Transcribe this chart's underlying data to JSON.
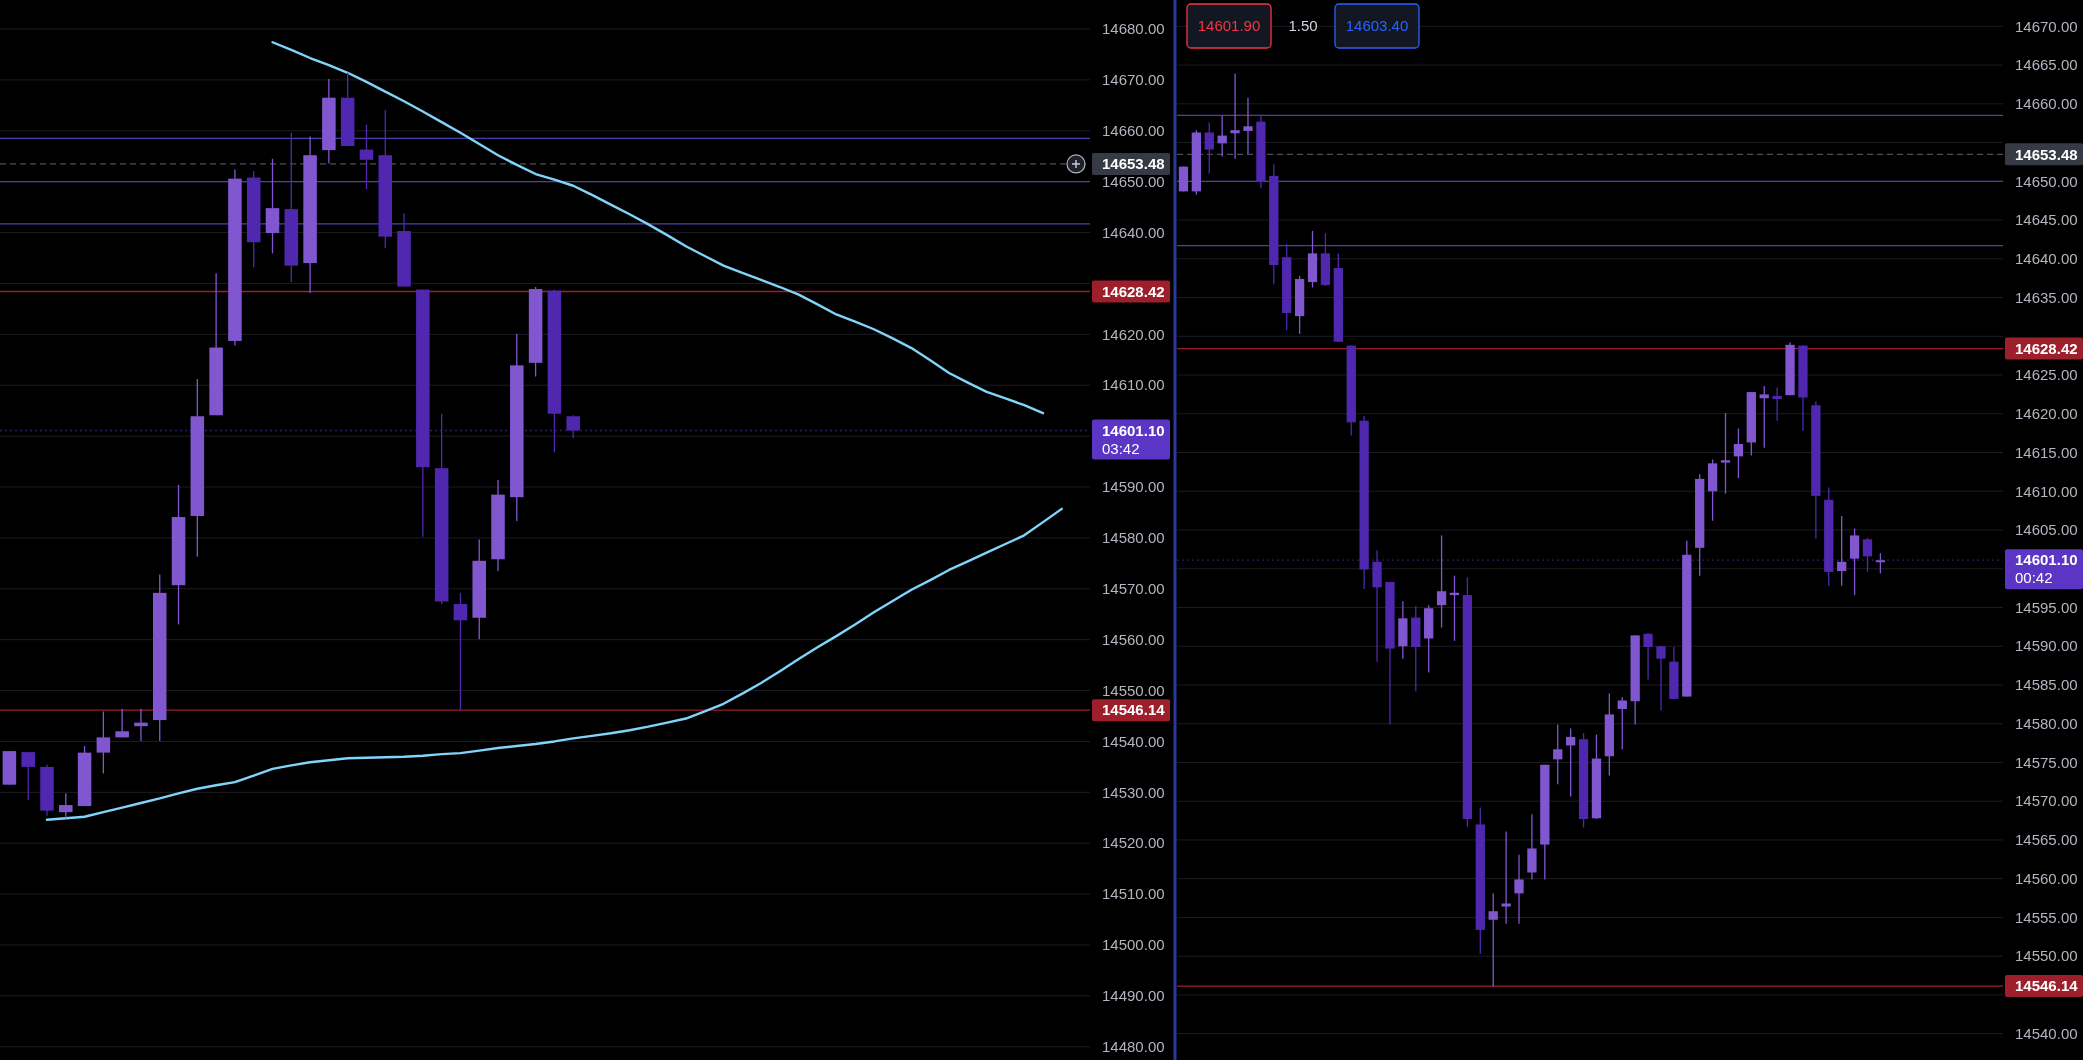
{
  "chart_data": [
    {
      "type": "candlestick",
      "ylim": [
        14477.4,
        14685.7
      ],
      "tick_labels": "y",
      "grid": "y",
      "yticks": [
        {
          "value": 14480,
          "label": "14480.00"
        },
        {
          "value": 14490,
          "label": "14490.00"
        },
        {
          "value": 14500,
          "label": "14500.00"
        },
        {
          "value": 14510,
          "label": "14510.00"
        },
        {
          "value": 14520,
          "label": "14520.00"
        },
        {
          "value": 14530,
          "label": "14530.00"
        },
        {
          "value": 14540,
          "label": "14540.00"
        },
        {
          "value": 14550,
          "label": "14550.00"
        },
        {
          "value": 14560,
          "label": "14560.00"
        },
        {
          "value": 14570,
          "label": "14570.00"
        },
        {
          "value": 14580,
          "label": "14580.00"
        },
        {
          "value": 14590,
          "label": "14590.00"
        },
        {
          "value": 14600,
          "label": null
        },
        {
          "value": 14610,
          "label": "14610.00"
        },
        {
          "value": 14620,
          "label": "14620.00"
        },
        {
          "value": 14630,
          "label": null
        },
        {
          "value": 14640,
          "label": "14640.00"
        },
        {
          "value": 14650,
          "label": "14650.00"
        },
        {
          "value": 14660,
          "label": "14660.00"
        },
        {
          "value": 14670,
          "label": "14670.00"
        },
        {
          "value": 14680,
          "label": "14680.00"
        }
      ],
      "categories": [
        null,
        null,
        null,
        null,
        null,
        null,
        null,
        null,
        null,
        null,
        null,
        null,
        null,
        null,
        null,
        null,
        null,
        null,
        null,
        null,
        null,
        null,
        null,
        null,
        null,
        null,
        null,
        null,
        null,
        null,
        null,
        null,
        null,
        null,
        null,
        null,
        null,
        null,
        null,
        null,
        null,
        null,
        null,
        null,
        null,
        null,
        null,
        null,
        null,
        null,
        null,
        null,
        null,
        null,
        null,
        null,
        null,
        null
      ],
      "ohlc": [
        [
          14531.5,
          14538.1,
          14531.5,
          14538.1
        ],
        [
          14537.9,
          14537.9,
          14528.5,
          14535.0
        ],
        [
          14535.0,
          14535.4,
          14525.4,
          14526.4
        ],
        [
          14526.1,
          14529.8,
          14524.9,
          14527.5
        ],
        [
          14527.3,
          14539.1,
          14527.3,
          14537.8
        ],
        [
          14537.8,
          14545.9,
          14533.7,
          14540.8
        ],
        [
          14540.8,
          14546.4,
          14540.8,
          14542.0
        ],
        [
          14543.0,
          14546.4,
          14540.1,
          14543.7
        ],
        [
          14544.2,
          14572.8,
          14540.1,
          14569.2
        ],
        [
          14570.7,
          14590.4,
          14563.0,
          14584.1
        ],
        [
          14584.3,
          14611.2,
          14576.3,
          14603.9
        ],
        [
          14604.1,
          14632.0,
          14604.1,
          14617.4
        ],
        [
          14618.7,
          14652.4,
          14617.8,
          14650.6
        ],
        [
          14650.8,
          14652.1,
          14633.2,
          14638.1
        ],
        [
          14639.9,
          14654.5,
          14635.9,
          14644.8
        ],
        [
          14644.6,
          14659.6,
          14630.3,
          14633.5
        ],
        [
          14634.0,
          14658.9,
          14628.1,
          14655.2
        ],
        [
          14656.2,
          14670.2,
          14653.6,
          14666.5
        ],
        [
          14666.5,
          14671.4,
          14657.0,
          14657.0
        ],
        [
          14656.3,
          14661.2,
          14648.5,
          14654.3
        ],
        [
          14655.2,
          14664.1,
          14636.9,
          14639.2
        ],
        [
          14640.3,
          14643.8,
          14629.4,
          14629.4
        ],
        [
          14628.8,
          14628.8,
          14580.2,
          14593.9
        ],
        [
          14593.7,
          14604.4,
          14567.0,
          14567.5
        ],
        [
          14567.0,
          14569.2,
          14546.1,
          14563.8
        ],
        [
          14564.3,
          14579.7,
          14560.1,
          14575.5
        ],
        [
          14575.8,
          14591.4,
          14573.5,
          14588.5
        ],
        [
          14588.0,
          14620.1,
          14583.3,
          14613.9
        ],
        [
          14614.4,
          14629.3,
          14611.7,
          14628.9
        ],
        [
          14628.6,
          14628.8,
          14596.8,
          14604.4
        ],
        [
          14603.9,
          14604.1,
          14599.6,
          14601.1
        ],
        null,
        null,
        null,
        null,
        null,
        null,
        null,
        null,
        null,
        null,
        null,
        null,
        null,
        null,
        null,
        null,
        null,
        null,
        null,
        null,
        null,
        null,
        null,
        null,
        null,
        null,
        null
      ],
      "colors": [
        "#8057cf",
        "#5028b0",
        "#5028b0",
        "#8057cf",
        "#8057cf",
        "#8057cf",
        "#8057cf",
        "#8057cf",
        "#8057cf",
        "#8057cf",
        "#8057cf",
        "#8057cf",
        "#8057cf",
        "#5028b0",
        "#8057cf",
        "#5028b0",
        "#8057cf",
        "#8057cf",
        "#5028b0",
        "#5028b0",
        "#5028b0",
        "#5028b0",
        "#5028b0",
        "#5028b0",
        "#5028b0",
        "#8057cf",
        "#8057cf",
        "#8057cf",
        "#8057cf",
        "#5028b0",
        "#5028b0",
        null,
        null,
        null,
        null,
        null,
        null,
        null,
        null,
        null,
        null,
        null,
        null,
        null,
        null,
        null,
        null,
        null,
        null,
        null,
        null,
        null,
        null,
        null,
        null,
        null,
        null,
        null
      ],
      "series": [
        {
          "type": "line",
          "color": "#81d4fa",
          "values": [
            null,
            null,
            null,
            null,
            null,
            null,
            null,
            null,
            null,
            null,
            null,
            null,
            null,
            null,
            14677.4,
            14675.9,
            14674.3,
            14672.9,
            14671.4,
            14669.6,
            14667.7,
            14665.8,
            14663.8,
            14661.7,
            14659.6,
            14657.4,
            14655.2,
            14653.3,
            14651.5,
            14650.4,
            14649.2,
            14647.4,
            14645.5,
            14643.6,
            14641.6,
            14639.5,
            14637.3,
            14635.4,
            14633.5,
            14632.1,
            14630.7,
            14629.3,
            14627.8,
            14625.9,
            14623.9,
            14622.5,
            14621.0,
            14619.2,
            14617.3,
            14614.9,
            14612.4,
            14610.5,
            14608.7,
            14607.4,
            14606.1,
            14604.5,
            null,
            null
          ]
        },
        {
          "type": "line",
          "color": "#81d4fa",
          "values": [
            null,
            null,
            14524.6,
            14524.9,
            14525.2,
            14526.1,
            14527.0,
            14527.9,
            14528.8,
            14529.8,
            14530.7,
            14531.4,
            14532.0,
            14533.3,
            14534.6,
            14535.3,
            14535.9,
            14536.3,
            14536.7,
            14536.8,
            14536.9,
            14537.0,
            14537.2,
            14537.5,
            14537.7,
            14538.2,
            14538.7,
            14539.1,
            14539.5,
            14540.0,
            14540.6,
            14541.1,
            14541.6,
            14542.2,
            14542.9,
            14543.7,
            14544.5,
            14545.9,
            14547.4,
            14549.4,
            14551.5,
            14553.8,
            14556.2,
            14558.5,
            14560.7,
            14563.0,
            14565.4,
            14567.6,
            14569.8,
            14571.7,
            14573.7,
            14575.4,
            14577.1,
            14578.8,
            14580.5,
            14583.1,
            14585.7,
            null
          ]
        }
      ],
      "ref_lines": [
        {
          "axis": "y",
          "value": 14658.5,
          "color": "#4b3fb0"
        },
        {
          "axis": "y",
          "value": 14650,
          "color": "#4b3fb0"
        },
        {
          "axis": "y",
          "value": 14641.7,
          "color": "#4b3fb0"
        },
        {
          "axis": "y",
          "value": 14628.42,
          "label": "14628.42",
          "color": "#9c1f2b"
        },
        {
          "axis": "y",
          "value": 14546.14,
          "label": "14546.14",
          "color": "#9c1f2b"
        },
        {
          "axis": "y",
          "value": 14653.48,
          "label": "14653.48",
          "color": "#4a4e5a",
          "line_style": "dashed"
        },
        {
          "axis": "y",
          "value": 14601.1,
          "label": "14601.10\n03:42",
          "color": "#5b35c4",
          "line_style": "dotted"
        }
      ]
    },
    {
      "type": "candlestick",
      "ylim": [
        14536.6,
        14673.4
      ],
      "tick_labels": "y",
      "grid": "y",
      "yticks": [
        {
          "value": 14540,
          "label": "14540.00"
        },
        {
          "value": 14545,
          "label": null
        },
        {
          "value": 14550,
          "label": "14550.00"
        },
        {
          "value": 14555,
          "label": "14555.00"
        },
        {
          "value": 14560,
          "label": "14560.00"
        },
        {
          "value": 14565,
          "label": "14565.00"
        },
        {
          "value": 14570,
          "label": "14570.00"
        },
        {
          "value": 14575,
          "label": "14575.00"
        },
        {
          "value": 14580,
          "label": "14580.00"
        },
        {
          "value": 14585,
          "label": "14585.00"
        },
        {
          "value": 14590,
          "label": "14590.00"
        },
        {
          "value": 14595,
          "label": "14595.00"
        },
        {
          "value": 14600,
          "label": null
        },
        {
          "value": 14605,
          "label": "14605.00"
        },
        {
          "value": 14610,
          "label": "14610.00"
        },
        {
          "value": 14615,
          "label": "14615.00"
        },
        {
          "value": 14620,
          "label": "14620.00"
        },
        {
          "value": 14625,
          "label": "14625.00"
        },
        {
          "value": 14630,
          "label": null
        },
        {
          "value": 14635,
          "label": "14635.00"
        },
        {
          "value": 14640,
          "label": "14640.00"
        },
        {
          "value": 14645,
          "label": "14645.00"
        },
        {
          "value": 14650,
          "label": "14650.00"
        },
        {
          "value": 14655,
          "label": null
        },
        {
          "value": 14660,
          "label": "14660.00"
        },
        {
          "value": 14665,
          "label": "14665.00"
        },
        {
          "value": 14670,
          "label": "14670.00"
        }
      ],
      "categories": [
        null,
        null,
        null,
        null,
        null,
        null,
        null,
        null,
        null,
        null,
        null,
        null,
        null,
        null,
        null,
        null,
        null,
        null,
        null,
        null,
        null,
        null,
        null,
        null,
        null,
        null,
        null,
        null,
        null,
        null,
        null,
        null,
        null,
        null,
        null,
        null,
        null,
        null,
        null,
        null,
        null,
        null,
        null,
        null,
        null,
        null,
        null,
        null,
        null,
        null,
        null,
        null,
        null,
        null,
        null,
        null,
        null,
        null,
        null,
        null,
        null,
        null,
        null,
        null
      ],
      "ohlc": [
        [
          14648.7,
          14651.9,
          14648.7,
          14651.9
        ],
        [
          14648.7,
          14656.6,
          14648.3,
          14656.3
        ],
        [
          14656.3,
          14657.6,
          14651.0,
          14654.1
        ],
        [
          14654.9,
          14658.5,
          14653.2,
          14655.9
        ],
        [
          14656.2,
          14663.9,
          14652.9,
          14656.6
        ],
        [
          14656.5,
          14660.8,
          14653.5,
          14657.1
        ],
        [
          14657.7,
          14658.6,
          14649.1,
          14649.9
        ],
        [
          14650.7,
          14652.2,
          14636.7,
          14639.2
        ],
        [
          14640.2,
          14641.9,
          14630.8,
          14633.0
        ],
        [
          14632.6,
          14637.8,
          14630.3,
          14637.4
        ],
        [
          14637.0,
          14643.6,
          14636.3,
          14640.7
        ],
        [
          14640.7,
          14643.3,
          14636.5,
          14636.6
        ],
        [
          14638.8,
          14640.7,
          14629.3,
          14629.3
        ],
        [
          14628.8,
          14628.8,
          14617.2,
          14618.9
        ],
        [
          14619.1,
          14619.7,
          14597.4,
          14599.9
        ],
        [
          14600.9,
          14602.4,
          14588.0,
          14597.6
        ],
        [
          14598.3,
          14598.3,
          14579.9,
          14589.7
        ],
        [
          14590.0,
          14595.8,
          14588.4,
          14593.6
        ],
        [
          14593.7,
          14595.2,
          14584.2,
          14589.9
        ],
        [
          14591.0,
          14595.3,
          14586.6,
          14594.9
        ],
        [
          14595.3,
          14604.3,
          14592.4,
          14597.1
        ],
        [
          14596.6,
          14599.1,
          14590.7,
          14596.9
        ],
        [
          14596.6,
          14598.9,
          14566.7,
          14567.7
        ],
        [
          14567.0,
          14569.2,
          14550.3,
          14553.4
        ],
        [
          14554.7,
          14558.1,
          14546.1,
          14555.8
        ],
        [
          14556.4,
          14566.1,
          14554.2,
          14556.8
        ],
        [
          14558.1,
          14563.1,
          14554.2,
          14559.9
        ],
        [
          14560.8,
          14568.3,
          14559.9,
          14563.9
        ],
        [
          14564.4,
          14574.7,
          14559.9,
          14574.7
        ],
        [
          14575.4,
          14579.9,
          14572.2,
          14576.7
        ],
        [
          14577.2,
          14579.4,
          14570.6,
          14578.3
        ],
        [
          14578.0,
          14578.8,
          14566.6,
          14567.7
        ],
        [
          14567.8,
          14578.6,
          14567.7,
          14575.5
        ],
        [
          14575.8,
          14583.9,
          14573.3,
          14581.2
        ],
        [
          14581.9,
          14583.4,
          14576.7,
          14583.0
        ],
        [
          14582.9,
          14591.4,
          14579.9,
          14591.4
        ],
        [
          14591.6,
          14591.7,
          14585.7,
          14589.9
        ],
        [
          14590.0,
          14590.0,
          14581.7,
          14588.4
        ],
        [
          14588.0,
          14589.9,
          14583.2,
          14583.2
        ],
        [
          14583.5,
          14603.6,
          14583.5,
          14601.8
        ],
        [
          14602.7,
          14612.2,
          14599.1,
          14611.6
        ],
        [
          14610.0,
          14614.1,
          14606.2,
          14613.6
        ],
        [
          14613.7,
          14620.1,
          14609.7,
          14614.0
        ],
        [
          14614.5,
          14618.1,
          14611.7,
          14616.1
        ],
        [
          14616.3,
          14622.8,
          14614.6,
          14622.8
        ],
        [
          14622.0,
          14623.6,
          14615.6,
          14622.5
        ],
        [
          14622.3,
          14623.4,
          14619.1,
          14621.9
        ],
        [
          14622.4,
          14629.2,
          14622.4,
          14628.9
        ],
        [
          14628.8,
          14628.8,
          14617.8,
          14622.1
        ],
        [
          14621.1,
          14621.6,
          14603.9,
          14609.4
        ],
        [
          14608.9,
          14610.5,
          14597.8,
          14599.6
        ],
        [
          14599.7,
          14606.8,
          14597.8,
          14600.9
        ],
        [
          14601.3,
          14605.2,
          14596.6,
          14604.3
        ],
        [
          14603.8,
          14604.0,
          14599.6,
          14601.6
        ],
        [
          14600.9,
          14602.0,
          14599.4,
          14601.1
        ],
        null,
        null,
        null,
        null,
        null,
        null,
        null,
        null,
        null
      ],
      "colors": [
        "#8057cf",
        "#8057cf",
        "#5028b0",
        "#8057cf",
        "#8057cf",
        "#8057cf",
        "#5028b0",
        "#5028b0",
        "#5028b0",
        "#8057cf",
        "#8057cf",
        "#5028b0",
        "#5028b0",
        "#5028b0",
        "#5028b0",
        "#5028b0",
        "#5028b0",
        "#8057cf",
        "#5028b0",
        "#8057cf",
        "#8057cf",
        "#8057cf",
        "#5028b0",
        "#5028b0",
        "#8057cf",
        "#8057cf",
        "#8057cf",
        "#8057cf",
        "#8057cf",
        "#8057cf",
        "#8057cf",
        "#5028b0",
        "#8057cf",
        "#8057cf",
        "#8057cf",
        "#8057cf",
        "#5028b0",
        "#5028b0",
        "#5028b0",
        "#8057cf",
        "#8057cf",
        "#8057cf",
        "#8057cf",
        "#8057cf",
        "#8057cf",
        "#8057cf",
        "#5028b0",
        "#8057cf",
        "#5028b0",
        "#5028b0",
        "#5028b0",
        "#8057cf",
        "#8057cf",
        "#5028b0",
        "#8057cf",
        null,
        null,
        null,
        null,
        null,
        null,
        null,
        null,
        null
      ],
      "ref_lines": [
        {
          "axis": "y",
          "value": 14658.5,
          "color": "#4b3fb0"
        },
        {
          "axis": "y",
          "value": 14650,
          "color": "#4b3fb0"
        },
        {
          "axis": "y",
          "value": 14641.7,
          "color": "#4b3fb0"
        },
        {
          "axis": "y",
          "value": 14628.42,
          "label": "14628.42",
          "color": "#9c1f2b"
        },
        {
          "axis": "y",
          "value": 14546.14,
          "label": "14546.14",
          "color": "#9c1f2b"
        },
        {
          "axis": "y",
          "value": 14653.48,
          "label": "14653.48",
          "color": "#4a4e5a",
          "line_style": "dashed"
        },
        {
          "axis": "y",
          "value": 14601.1,
          "label": "14601.10\n00:42",
          "color": "#5b35c4",
          "line_style": "dotted"
        }
      ],
      "annotations": [
        "14601.90",
        "1.50",
        "14603.40"
      ]
    }
  ]
}
